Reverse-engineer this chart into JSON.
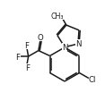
{
  "bg_color": "#ffffff",
  "line_color": "#1a1a1a",
  "line_width": 1.1,
  "font_size": 6.2,
  "figsize": [
    1.17,
    1.14
  ],
  "dpi": 100,
  "xlim": [
    0,
    117
  ],
  "ylim": [
    114,
    0
  ]
}
